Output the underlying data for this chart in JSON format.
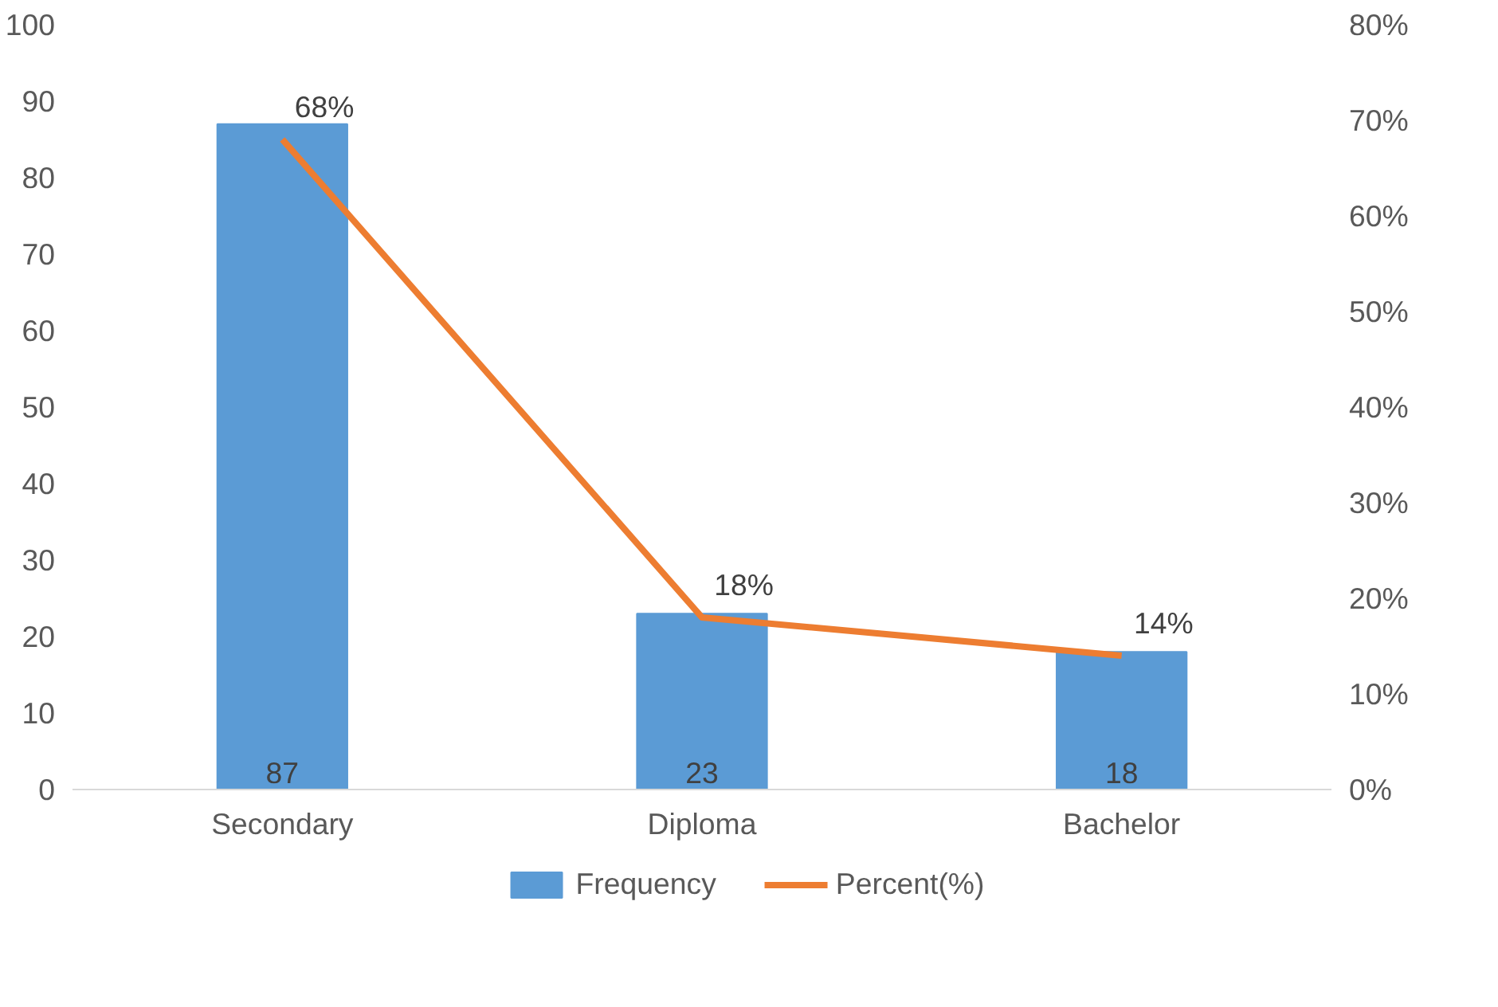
{
  "chart_data": {
    "type": "bar",
    "categories": [
      "Secondary",
      "Diploma",
      "Bachelor"
    ],
    "series": [
      {
        "name": "Frequency",
        "color": "#5b9bd5",
        "values": [
          87,
          23,
          18
        ],
        "value_labels": [
          "87",
          "23",
          "18"
        ]
      },
      {
        "name": "Percent(%)",
        "type": "line",
        "axis": "y2",
        "color": "#ed7d31",
        "values": [
          68,
          18,
          14
        ],
        "value_labels": [
          "68%",
          "18%",
          "14%"
        ]
      }
    ],
    "ylim": [
      0,
      100
    ],
    "yticks": [
      0,
      10,
      20,
      30,
      40,
      50,
      60,
      70,
      80,
      90,
      100
    ],
    "y2lim": [
      0,
      80
    ],
    "y2ticks": [
      {
        "value": 0,
        "label": "0%"
      },
      {
        "value": 10,
        "label": "10%"
      },
      {
        "value": 20,
        "label": "20%"
      },
      {
        "value": 30,
        "label": "30%"
      },
      {
        "value": 40,
        "label": "40%"
      },
      {
        "value": 50,
        "label": "50%"
      },
      {
        "value": 60,
        "label": "60%"
      },
      {
        "value": 70,
        "label": "70%"
      },
      {
        "value": 80,
        "label": "80%"
      }
    ],
    "grid": false,
    "legend": "bottom",
    "marker": "none"
  }
}
